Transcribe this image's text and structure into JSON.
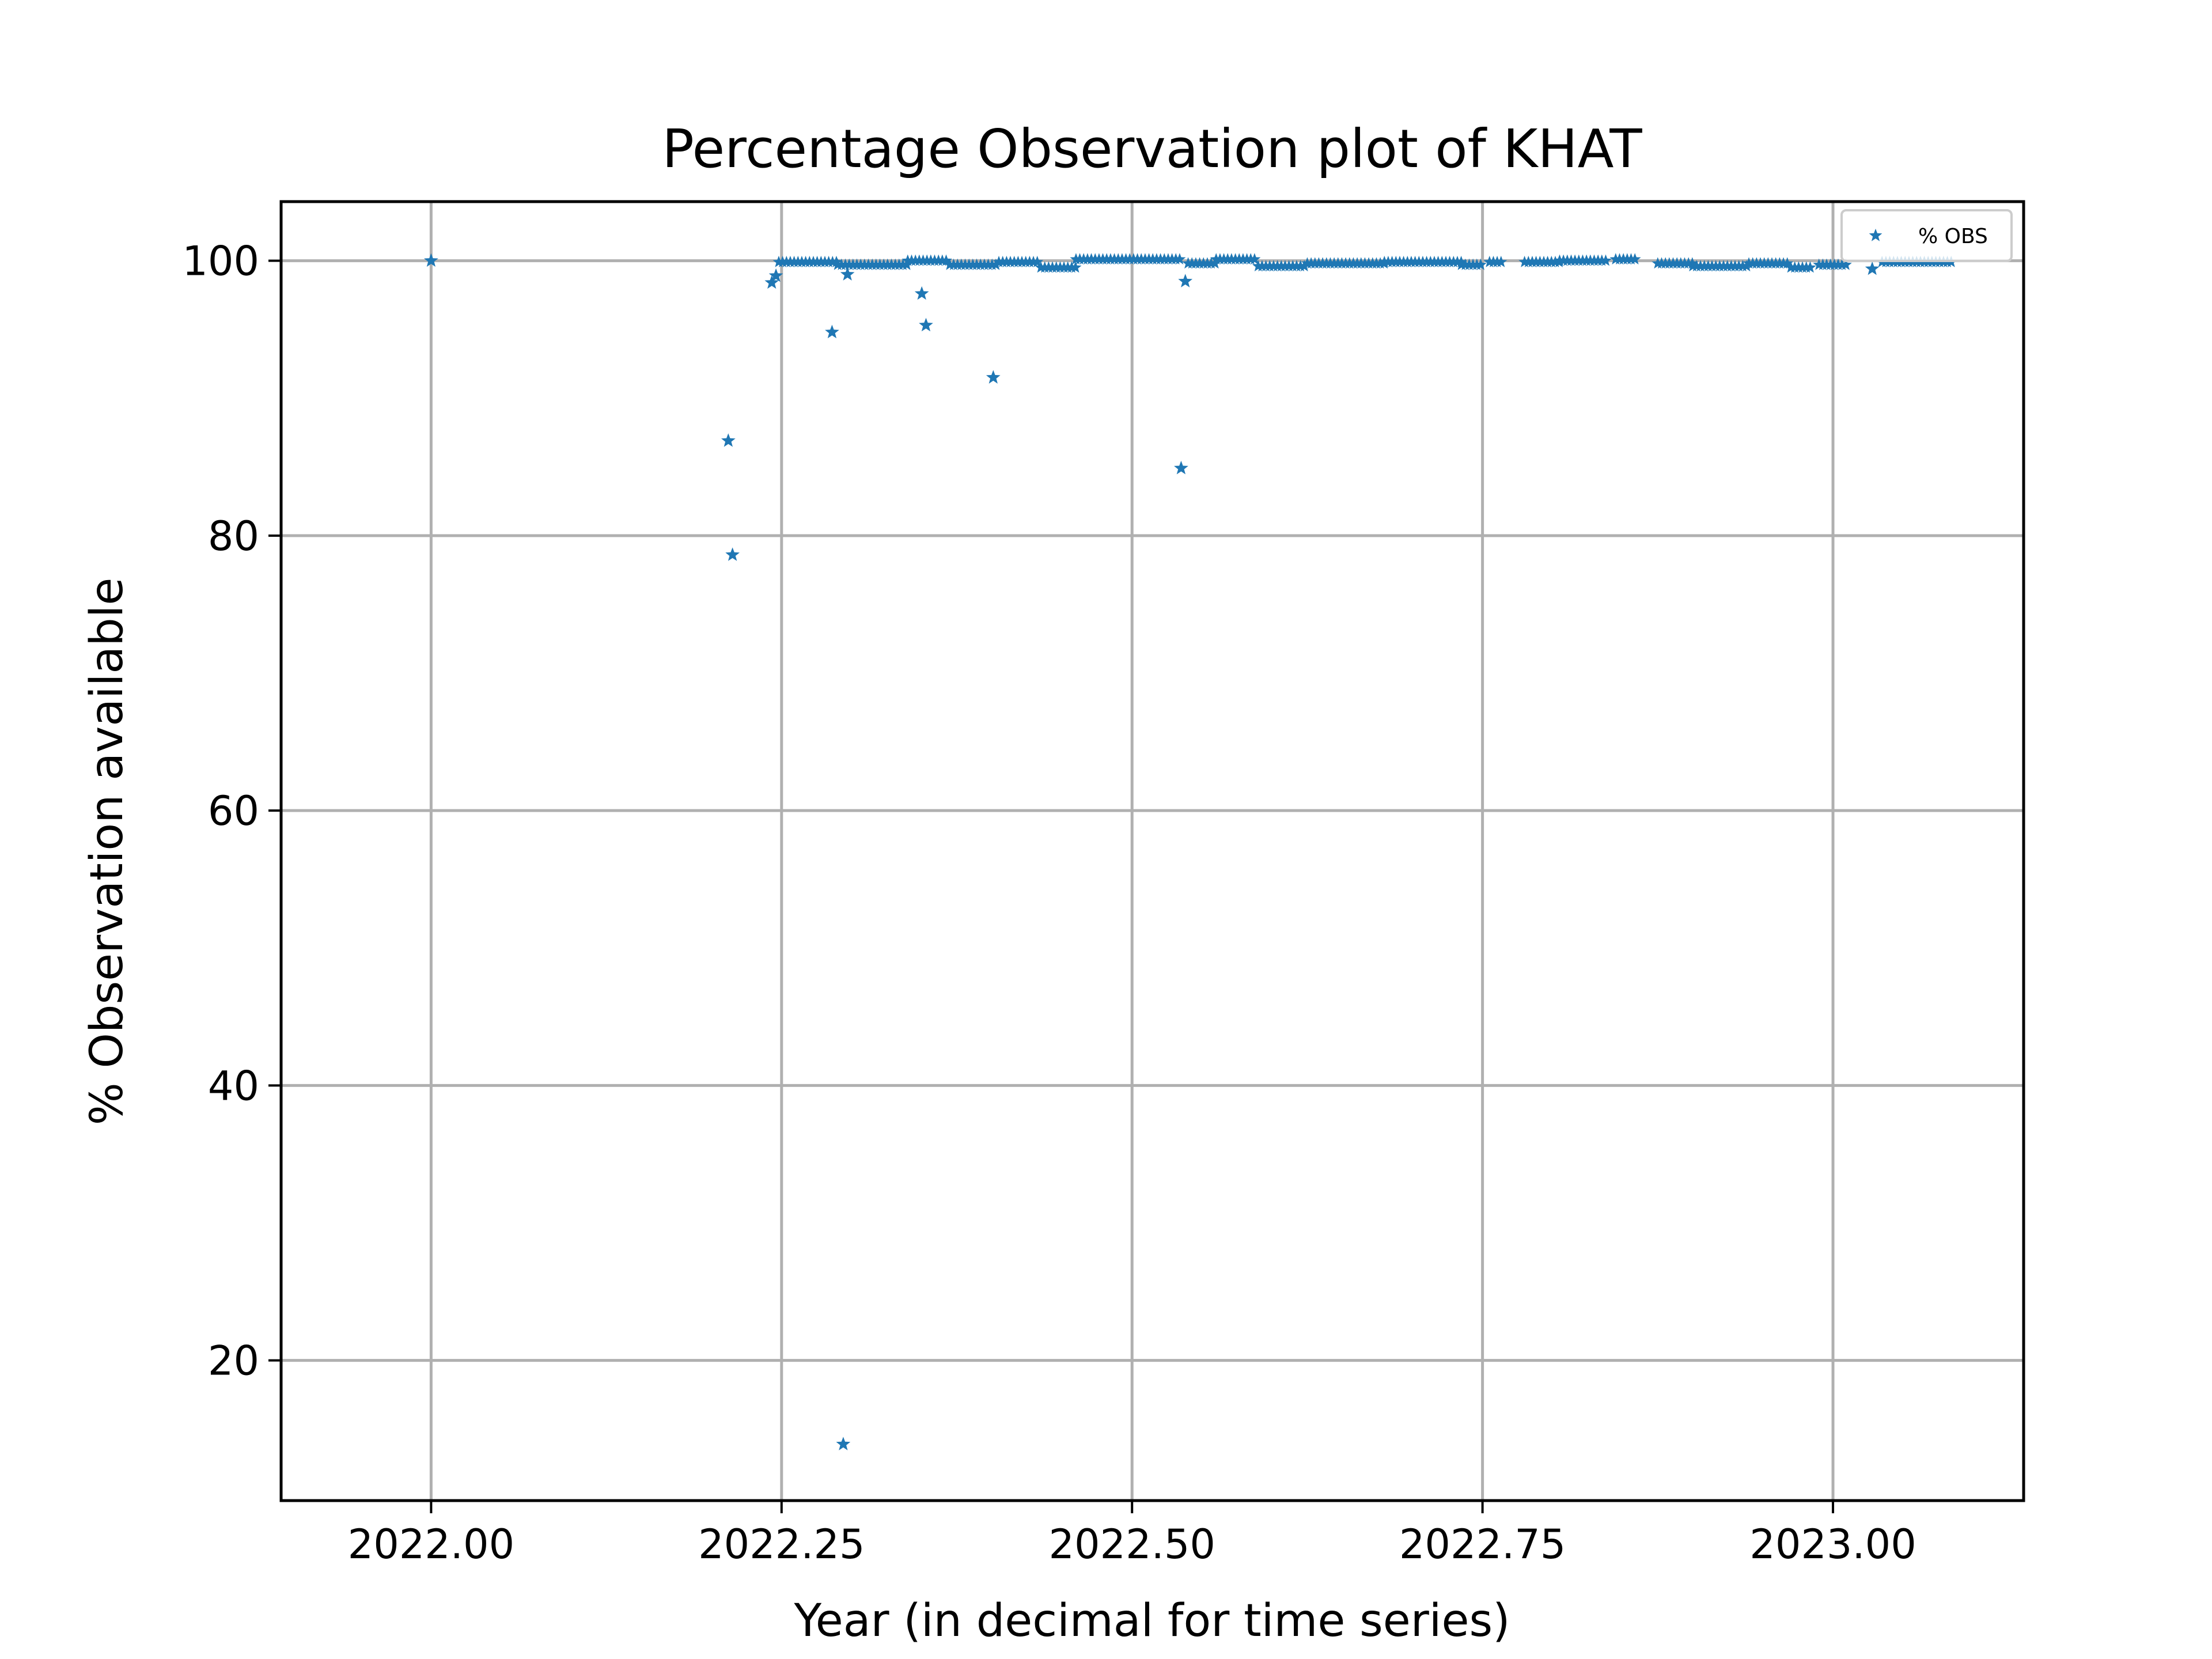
{
  "chart_data": {
    "type": "scatter",
    "title": "Percentage Observation plot of KHAT",
    "xlabel": "Year (in decimal for time series)",
    "ylabel": "% Observation available",
    "xlim": [
      2021.893,
      2023.136
    ],
    "ylim": [
      9.8,
      104.3
    ],
    "xticks": [
      2022.0,
      2022.25,
      2022.5,
      2022.75,
      2023.0
    ],
    "xtick_labels": [
      "2022.00",
      "2022.25",
      "2022.50",
      "2022.75",
      "2023.00"
    ],
    "yticks": [
      20,
      40,
      60,
      80,
      100
    ],
    "ytick_labels": [
      "20",
      "40",
      "60",
      "80",
      "100"
    ],
    "grid": true,
    "legend_position": "top-right",
    "marker": "star",
    "marker_color": "#1f77b4",
    "series": [
      {
        "name": "% OBS",
        "outliers": [
          [
            2022.0,
            100.0
          ],
          [
            2022.212,
            86.9
          ],
          [
            2022.215,
            78.6
          ],
          [
            2022.243,
            98.4
          ],
          [
            2022.246,
            98.9
          ],
          [
            2022.286,
            94.8
          ],
          [
            2022.294,
            13.9
          ],
          [
            2022.297,
            99.0
          ],
          [
            2022.35,
            97.6
          ],
          [
            2022.353,
            95.3
          ],
          [
            2022.401,
            91.5
          ],
          [
            2022.535,
            84.9
          ],
          [
            2022.538,
            98.5
          ],
          [
            2023.028,
            99.4
          ]
        ],
        "runs": [
          {
            "x": [
              2022.248,
              2022.29
            ],
            "y": 99.9
          },
          {
            "x": [
              2022.29,
              2022.34
            ],
            "y": 99.7
          },
          {
            "x": [
              2022.34,
              2022.37
            ],
            "y": 100.0
          },
          {
            "x": [
              2022.37,
              2022.405
            ],
            "y": 99.7
          },
          {
            "x": [
              2022.405,
              2022.435
            ],
            "y": 99.9
          },
          {
            "x": [
              2022.435,
              2022.46
            ],
            "y": 99.5
          },
          {
            "x": [
              2022.46,
              2022.535
            ],
            "y": 100.1
          },
          {
            "x": [
              2022.54,
              2022.56
            ],
            "y": 99.8
          },
          {
            "x": [
              2022.56,
              2022.59
            ],
            "y": 100.1
          },
          {
            "x": [
              2022.59,
              2022.625
            ],
            "y": 99.6
          },
          {
            "x": [
              2022.625,
              2022.68
            ],
            "y": 99.8
          },
          {
            "x": [
              2022.68,
              2022.735
            ],
            "y": 99.9
          },
          {
            "x": [
              2022.735,
              2022.75
            ],
            "y": 99.7
          },
          {
            "x": [
              2022.755,
              2022.765
            ],
            "y": 99.9
          },
          {
            "x": [
              2022.78,
              2022.805
            ],
            "y": 99.9
          },
          {
            "x": [
              2022.805,
              2022.84
            ],
            "y": 100.0
          },
          {
            "x": [
              2022.845,
              2022.86
            ],
            "y": 100.1
          },
          {
            "x": [
              2022.875,
              2022.9
            ],
            "y": 99.8
          },
          {
            "x": [
              2022.9,
              2022.94
            ],
            "y": 99.6
          },
          {
            "x": [
              2022.94,
              2022.97
            ],
            "y": 99.8
          },
          {
            "x": [
              2022.97,
              2022.985
            ],
            "y": 99.5
          },
          {
            "x": [
              2022.99,
              2023.01
            ],
            "y": 99.7
          },
          {
            "x": [
              2023.035,
              2023.085
            ],
            "y": 99.9
          }
        ]
      }
    ]
  }
}
